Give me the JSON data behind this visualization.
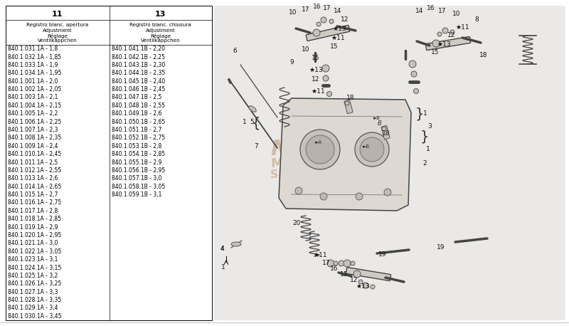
{
  "bg_color": "#ffffff",
  "col1_header": "11",
  "col2_header": "13",
  "col1_subheader": "Registro blanc. apertura\nAdjustment\nRéglage\nVentilkäppchen",
  "col2_subheader": "Registro blanc. chiusura\nAdjustment\nRéglage\nVentilkäppchen",
  "col1_data": [
    "840.1.031.1A - 1,8",
    "840.1.032.1A - 1,85",
    "840.1.033.1A - 1,9",
    "840.1.034.1A - 1,95",
    "840.1.001.1A - 2,0",
    "840.1.002.1A - 2,05",
    "840.1.003.1A - 2,1",
    "840.1.004.1A - 2,15",
    "840.1.005.1A - 2,2",
    "840.1.006.1A - 2,25",
    "840.1.007.1A - 2,3",
    "840.1.008.1A - 2,35",
    "840.1.009.1A - 2,4",
    "840.1.010.1A - 2,45",
    "840.1.011.1A - 2,5",
    "840.1.012.1A - 2,55",
    "840.1.013.1A - 2,6",
    "840.1.014.1A - 2,65",
    "840.1.015.1A - 2,7",
    "840.1.016.1A - 2,75",
    "840.1.017.1A - 2,8",
    "840.1.018.1A - 2,85",
    "840.1.019.1A - 2,9",
    "840.1.020.1A - 2,95",
    "840.1.021.1A - 3,0",
    "840.1.022.1A - 3,05",
    "840.1.023.1A - 3,1",
    "840.1.024.1A - 3,15",
    "840.1.025.1A - 3,2",
    "840.1.026.1A - 3,25",
    "840.1.027.1A - 3,3",
    "840.1.028.1A - 3,35",
    "840.1.029.1A - 3,4",
    "840.1.030.1A - 3,45"
  ],
  "col2_data": [
    "840.1.041.1B - 2,20",
    "840.1.042.1B - 2,25",
    "840.1.043.1B - 2,30",
    "840.1.044.1B - 2,35",
    "840.1.045.1B - 2,40",
    "840.1.046.1B - 2,45",
    "840.1.047.1B - 2,5",
    "840.1.048.1B - 2,55",
    "840.1.049.1B - 2,6",
    "840.1.050.1B - 2,65",
    "840.1.051.1B - 2,7",
    "840.1.052.1B - 2,75",
    "840.1.053.1B - 2,8",
    "840.1.054.1B - 2,85",
    "840.1.055.1B - 2,9",
    "840.1.056.1B - 2,95",
    "840.1.057.1B - 3,0",
    "840.1.058.1B - 3,05",
    "840.1.059.1B - 3,1"
  ],
  "table_font_size": 5.5,
  "header_font_size": 8.0,
  "subheader_font_size": 5.2,
  "footer_line_color": "#aaaaaa"
}
